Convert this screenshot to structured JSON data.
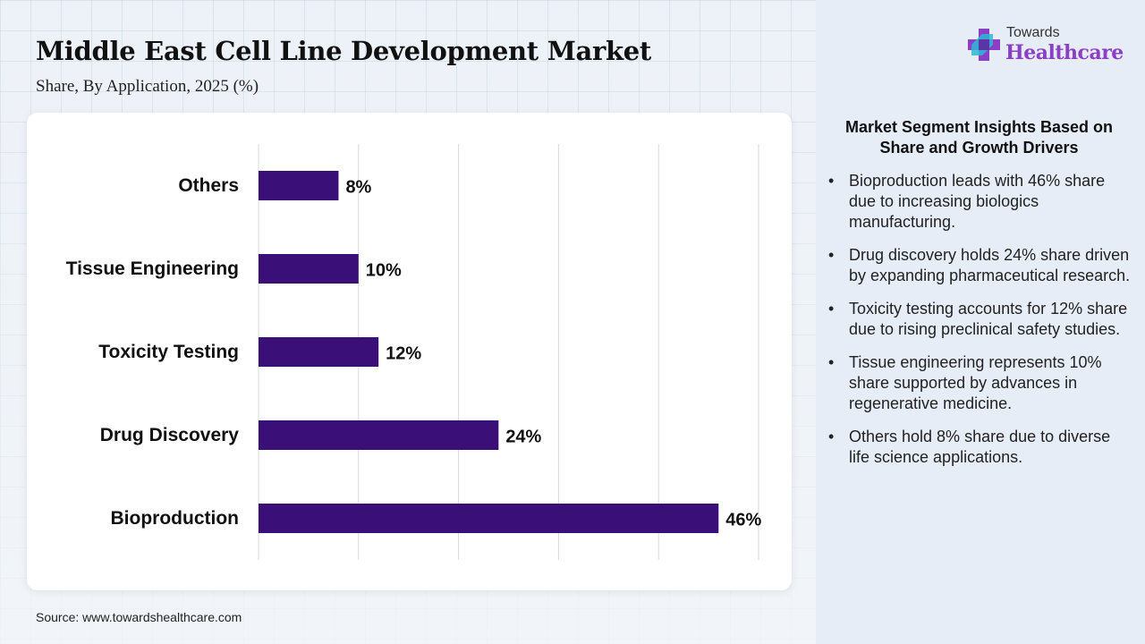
{
  "header": {
    "title": "Middle East Cell Line Development Market",
    "subtitle": "Share, By Application, 2025 (%)"
  },
  "logo": {
    "line1": "Towards",
    "line2": "Healthcare"
  },
  "chart_data": {
    "type": "bar",
    "orientation": "horizontal",
    "categories": [
      "Others",
      "Tissue Engineering",
      "Toxicity Testing",
      "Drug Discovery",
      "Bioproduction"
    ],
    "values": [
      8,
      10,
      12,
      24,
      46
    ],
    "value_labels": [
      "8%",
      "10%",
      "12%",
      "24%",
      "46%"
    ],
    "xlim": [
      0,
      50
    ],
    "grid": true,
    "bar_color": "#3b0f78"
  },
  "insights": {
    "title": "Market Segment Insights Based on Share and Growth Drivers",
    "bullet": "•",
    "items": [
      "Bioproduction leads with 46% share due to increasing biologics manufacturing.",
      "Drug discovery holds 24% share driven by expanding pharmaceutical research.",
      "Toxicity testing accounts for 12% share due to rising preclinical safety studies.",
      "Tissue engineering represents 10% share supported by advances in regenerative medicine.",
      "Others hold 8% share due to diverse life science applications."
    ]
  },
  "footer": {
    "source": "Source: www.towardshealthcare.com"
  },
  "colors": {
    "accent": "#3b0f78",
    "logo_purple": "#8a3fc4",
    "logo_cyan": "#2fb7d6"
  }
}
